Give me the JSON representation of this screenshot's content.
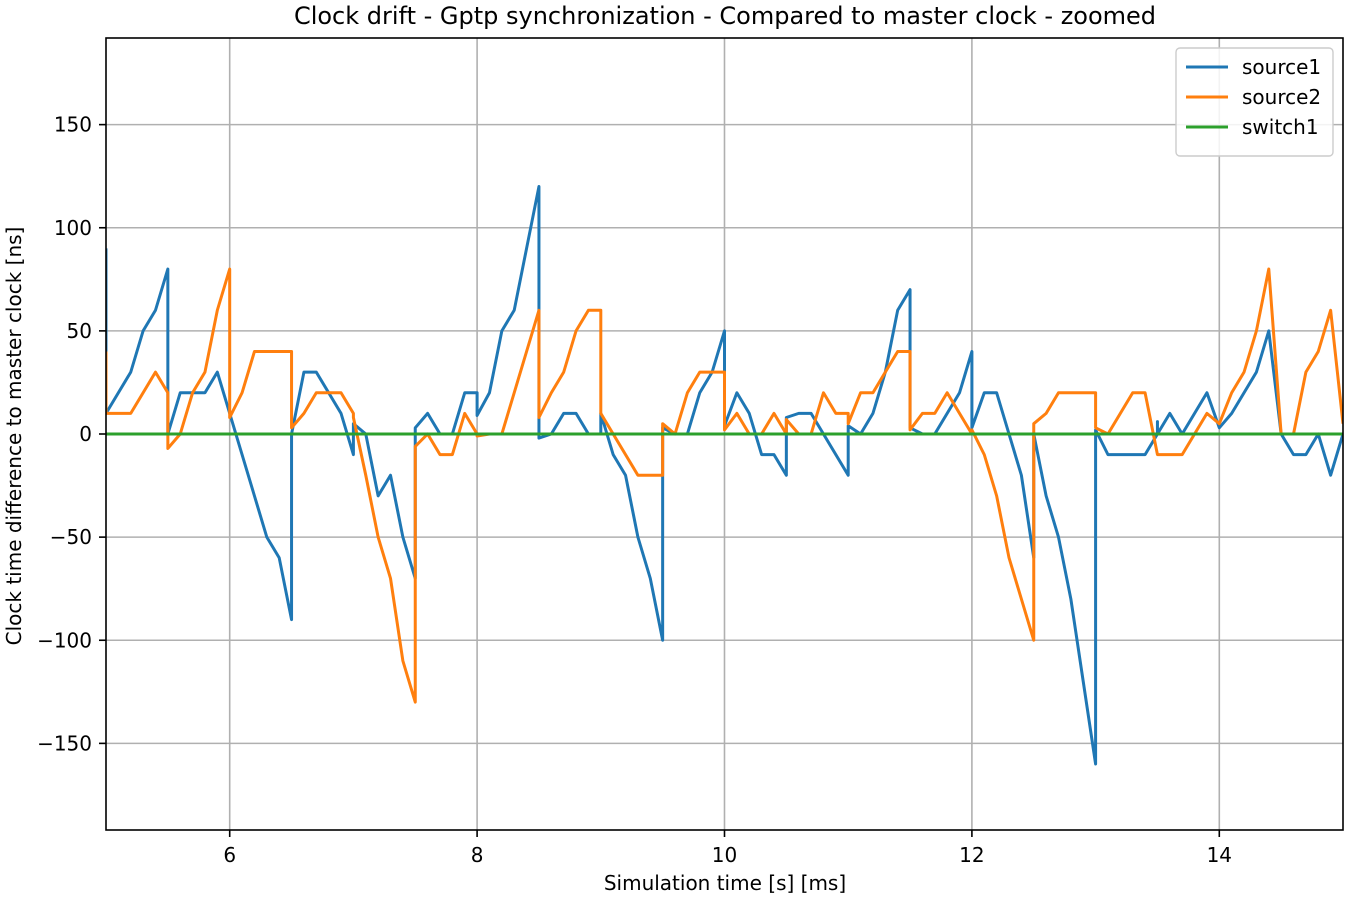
{
  "chart_data": {
    "type": "line",
    "title": "Clock drift - Gptp synchronization - Compared to master clock - zoomed",
    "xlabel": "Simulation time [s] [ms]",
    "ylabel": "Clock time difference to master clock [ns]",
    "xlim": [
      5,
      15
    ],
    "ylim": [
      -192,
      192
    ],
    "xticks": [
      6,
      8,
      10,
      12,
      14
    ],
    "xtick_labels": [
      "6",
      "8",
      "10",
      "12",
      "14"
    ],
    "yticks": [
      -150,
      -100,
      -50,
      0,
      50,
      100,
      150
    ],
    "ytick_labels": [
      "−150",
      "−100",
      "−50",
      "0",
      "50",
      "100",
      "150"
    ],
    "grid": true,
    "legend_position": "top-right",
    "series": [
      {
        "name": "source1",
        "color": "#1f77b4",
        "points": [
          [
            5.0,
            90
          ],
          [
            5.0,
            10
          ],
          [
            5.1,
            20
          ],
          [
            5.2,
            30
          ],
          [
            5.3,
            50
          ],
          [
            5.4,
            60
          ],
          [
            5.5,
            80
          ],
          [
            5.5,
            0
          ],
          [
            5.6,
            20
          ],
          [
            5.7,
            20
          ],
          [
            5.8,
            20
          ],
          [
            5.9,
            30
          ],
          [
            6.0,
            10
          ],
          [
            6.1,
            -10
          ],
          [
            6.2,
            -30
          ],
          [
            6.3,
            -50
          ],
          [
            6.4,
            -60
          ],
          [
            6.5,
            -90
          ],
          [
            6.5,
            0
          ],
          [
            6.6,
            30
          ],
          [
            6.7,
            30
          ],
          [
            6.8,
            20
          ],
          [
            6.9,
            10
          ],
          [
            7.0,
            -10
          ],
          [
            7.0,
            5
          ],
          [
            7.1,
            0
          ],
          [
            7.2,
            -30
          ],
          [
            7.3,
            -20
          ],
          [
            7.4,
            -50
          ],
          [
            7.5,
            -70
          ],
          [
            7.5,
            3
          ],
          [
            7.6,
            10
          ],
          [
            7.7,
            0
          ],
          [
            7.8,
            0
          ],
          [
            7.9,
            20
          ],
          [
            8.0,
            20
          ],
          [
            8.0,
            9
          ],
          [
            8.1,
            20
          ],
          [
            8.2,
            50
          ],
          [
            8.3,
            60
          ],
          [
            8.4,
            90
          ],
          [
            8.5,
            120
          ],
          [
            8.5,
            -2
          ],
          [
            8.6,
            0
          ],
          [
            8.7,
            10
          ],
          [
            8.8,
            10
          ],
          [
            8.9,
            0
          ],
          [
            9.0,
            0
          ],
          [
            9.0,
            10
          ],
          [
            9.1,
            -10
          ],
          [
            9.2,
            -20
          ],
          [
            9.3,
            -50
          ],
          [
            9.4,
            -70
          ],
          [
            9.5,
            -100
          ],
          [
            9.5,
            3
          ],
          [
            9.6,
            0
          ],
          [
            9.7,
            0
          ],
          [
            9.8,
            20
          ],
          [
            9.9,
            30
          ],
          [
            10.0,
            50
          ],
          [
            10.0,
            4
          ],
          [
            10.1,
            20
          ],
          [
            10.2,
            10
          ],
          [
            10.3,
            -10
          ],
          [
            10.4,
            -10
          ],
          [
            10.5,
            -20
          ],
          [
            10.5,
            8
          ],
          [
            10.6,
            10
          ],
          [
            10.7,
            10
          ],
          [
            10.8,
            0
          ],
          [
            10.9,
            -10
          ],
          [
            11.0,
            -20
          ],
          [
            11.0,
            4
          ],
          [
            11.1,
            0
          ],
          [
            11.2,
            10
          ],
          [
            11.3,
            30
          ],
          [
            11.4,
            60
          ],
          [
            11.5,
            70
          ],
          [
            11.5,
            3
          ],
          [
            11.6,
            0
          ],
          [
            11.7,
            0
          ],
          [
            11.8,
            10
          ],
          [
            11.9,
            20
          ],
          [
            12.0,
            40
          ],
          [
            12.0,
            3
          ],
          [
            12.1,
            20
          ],
          [
            12.2,
            20
          ],
          [
            12.3,
            0
          ],
          [
            12.4,
            -20
          ],
          [
            12.5,
            -60
          ],
          [
            12.5,
            0
          ],
          [
            12.6,
            -30
          ],
          [
            12.7,
            -50
          ],
          [
            12.8,
            -80
          ],
          [
            12.9,
            -120
          ],
          [
            13.0,
            -160
          ],
          [
            13.0,
            2
          ],
          [
            13.1,
            -10
          ],
          [
            13.2,
            -10
          ],
          [
            13.3,
            -10
          ],
          [
            13.4,
            -10
          ],
          [
            13.5,
            0
          ],
          [
            13.5,
            6
          ],
          [
            13.5,
            0
          ],
          [
            13.6,
            10
          ],
          [
            13.7,
            0
          ],
          [
            13.8,
            10
          ],
          [
            13.9,
            20
          ],
          [
            14.0,
            3
          ],
          [
            14.1,
            10
          ],
          [
            14.2,
            20
          ],
          [
            14.3,
            30
          ],
          [
            14.4,
            50
          ],
          [
            14.5,
            0
          ],
          [
            14.6,
            -10
          ],
          [
            14.7,
            -10
          ],
          [
            14.8,
            0
          ],
          [
            14.9,
            -20
          ],
          [
            15.0,
            0
          ]
        ]
      },
      {
        "name": "source2",
        "color": "#ff7f0e",
        "points": [
          [
            5.0,
            40
          ],
          [
            5.0,
            10
          ],
          [
            5.1,
            10
          ],
          [
            5.2,
            10
          ],
          [
            5.3,
            20
          ],
          [
            5.4,
            30
          ],
          [
            5.5,
            20
          ],
          [
            5.5,
            -7
          ],
          [
            5.6,
            0
          ],
          [
            5.7,
            20
          ],
          [
            5.8,
            30
          ],
          [
            5.9,
            60
          ],
          [
            6.0,
            80
          ],
          [
            6.0,
            8
          ],
          [
            6.1,
            20
          ],
          [
            6.2,
            40
          ],
          [
            6.3,
            40
          ],
          [
            6.4,
            40
          ],
          [
            6.5,
            40
          ],
          [
            6.5,
            3
          ],
          [
            6.6,
            10
          ],
          [
            6.7,
            20
          ],
          [
            6.8,
            20
          ],
          [
            6.9,
            20
          ],
          [
            7.0,
            10
          ],
          [
            7.0,
            8
          ],
          [
            7.1,
            -20
          ],
          [
            7.2,
            -50
          ],
          [
            7.3,
            -70
          ],
          [
            7.4,
            -110
          ],
          [
            7.5,
            -130
          ],
          [
            7.5,
            -6
          ],
          [
            7.6,
            0
          ],
          [
            7.7,
            -10
          ],
          [
            7.8,
            -10
          ],
          [
            7.9,
            10
          ],
          [
            8.0,
            0
          ],
          [
            8.0,
            -1
          ],
          [
            8.1,
            0
          ],
          [
            8.2,
            0
          ],
          [
            8.3,
            20
          ],
          [
            8.4,
            40
          ],
          [
            8.5,
            60
          ],
          [
            8.5,
            8
          ],
          [
            8.6,
            20
          ],
          [
            8.7,
            30
          ],
          [
            8.8,
            50
          ],
          [
            8.9,
            60
          ],
          [
            9.0,
            60
          ],
          [
            9.0,
            10
          ],
          [
            9.1,
            0
          ],
          [
            9.2,
            -10
          ],
          [
            9.3,
            -20
          ],
          [
            9.4,
            -20
          ],
          [
            9.5,
            -20
          ],
          [
            9.5,
            5
          ],
          [
            9.6,
            0
          ],
          [
            9.7,
            20
          ],
          [
            9.8,
            30
          ],
          [
            9.9,
            30
          ],
          [
            10.0,
            30
          ],
          [
            10.0,
            2
          ],
          [
            10.1,
            10
          ],
          [
            10.2,
            0
          ],
          [
            10.3,
            0
          ],
          [
            10.4,
            10
          ],
          [
            10.5,
            0
          ],
          [
            10.5,
            7
          ],
          [
            10.6,
            0
          ],
          [
            10.7,
            0
          ],
          [
            10.8,
            20
          ],
          [
            10.9,
            10
          ],
          [
            11.0,
            10
          ],
          [
            11.0,
            5
          ],
          [
            11.1,
            20
          ],
          [
            11.2,
            20
          ],
          [
            11.3,
            30
          ],
          [
            11.4,
            40
          ],
          [
            11.5,
            40
          ],
          [
            11.5,
            2
          ],
          [
            11.6,
            10
          ],
          [
            11.7,
            10
          ],
          [
            11.8,
            20
          ],
          [
            11.9,
            10
          ],
          [
            12.0,
            0
          ],
          [
            12.0,
            2
          ],
          [
            12.1,
            -10
          ],
          [
            12.2,
            -30
          ],
          [
            12.3,
            -60
          ],
          [
            12.4,
            -80
          ],
          [
            12.5,
            -100
          ],
          [
            12.5,
            5
          ],
          [
            12.6,
            10
          ],
          [
            12.7,
            20
          ],
          [
            12.8,
            20
          ],
          [
            12.9,
            20
          ],
          [
            13.0,
            20
          ],
          [
            13.0,
            3
          ],
          [
            13.1,
            0
          ],
          [
            13.2,
            10
          ],
          [
            13.3,
            20
          ],
          [
            13.4,
            20
          ],
          [
            13.5,
            -10
          ],
          [
            13.6,
            -10
          ],
          [
            13.7,
            -10
          ],
          [
            13.8,
            0
          ],
          [
            13.9,
            10
          ],
          [
            14.0,
            5
          ],
          [
            14.1,
            20
          ],
          [
            14.2,
            30
          ],
          [
            14.3,
            50
          ],
          [
            14.4,
            80
          ],
          [
            14.5,
            0
          ],
          [
            14.6,
            0
          ],
          [
            14.7,
            30
          ],
          [
            14.8,
            40
          ],
          [
            14.9,
            60
          ],
          [
            15.0,
            5
          ]
        ]
      },
      {
        "name": "switch1",
        "color": "#2ca02c",
        "points": [
          [
            5.0,
            0
          ],
          [
            15.0,
            0
          ]
        ]
      }
    ]
  }
}
